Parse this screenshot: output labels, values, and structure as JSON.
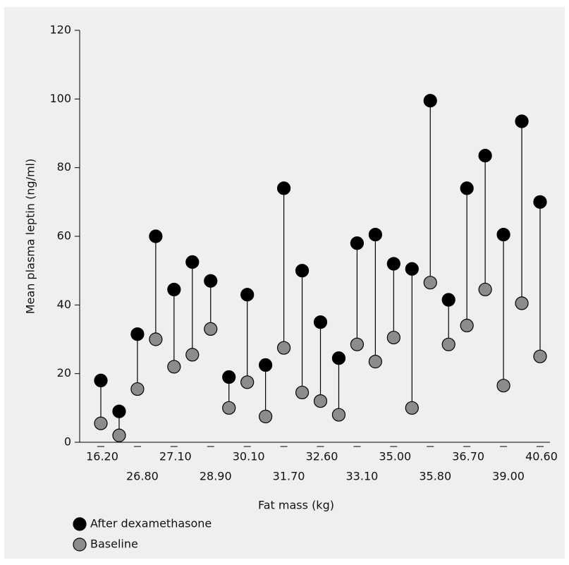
{
  "chart_data": {
    "type": "dumbbell",
    "x_label": "Fat mass (kg)",
    "y_label": "Mean plasma leptin (ng/ml)",
    "categories": [
      "16.20",
      null,
      "26.80",
      null,
      "27.10",
      null,
      "28.90",
      null,
      "30.10",
      null,
      "31.70",
      null,
      "32.60",
      null,
      "33.10",
      null,
      "35.00",
      null,
      "35.80",
      null,
      "36.70",
      null,
      "39.00",
      null,
      "40.60"
    ],
    "series": [
      {
        "name": "After dexamethasone",
        "color": "#000000",
        "values": [
          18,
          9,
          31.5,
          60,
          44.5,
          52.5,
          47,
          19,
          43,
          22.5,
          74,
          50,
          35,
          24.5,
          58,
          60.5,
          52,
          50.5,
          99.5,
          41.5,
          74,
          83.5,
          60.5,
          93.5,
          70
        ]
      },
      {
        "name": "Baseline",
        "color": "#8c8c8c",
        "values": [
          5.5,
          2,
          15.5,
          30,
          22,
          25.5,
          33,
          10,
          17.5,
          7.5,
          27.5,
          14.5,
          12,
          8,
          28.5,
          23.5,
          30.5,
          10,
          46.5,
          28.5,
          34,
          44.5,
          16.5,
          40.5,
          25
        ]
      }
    ],
    "ylim": [
      0,
      120
    ],
    "yticks": [
      0,
      20,
      40,
      60,
      80,
      100,
      120
    ]
  }
}
